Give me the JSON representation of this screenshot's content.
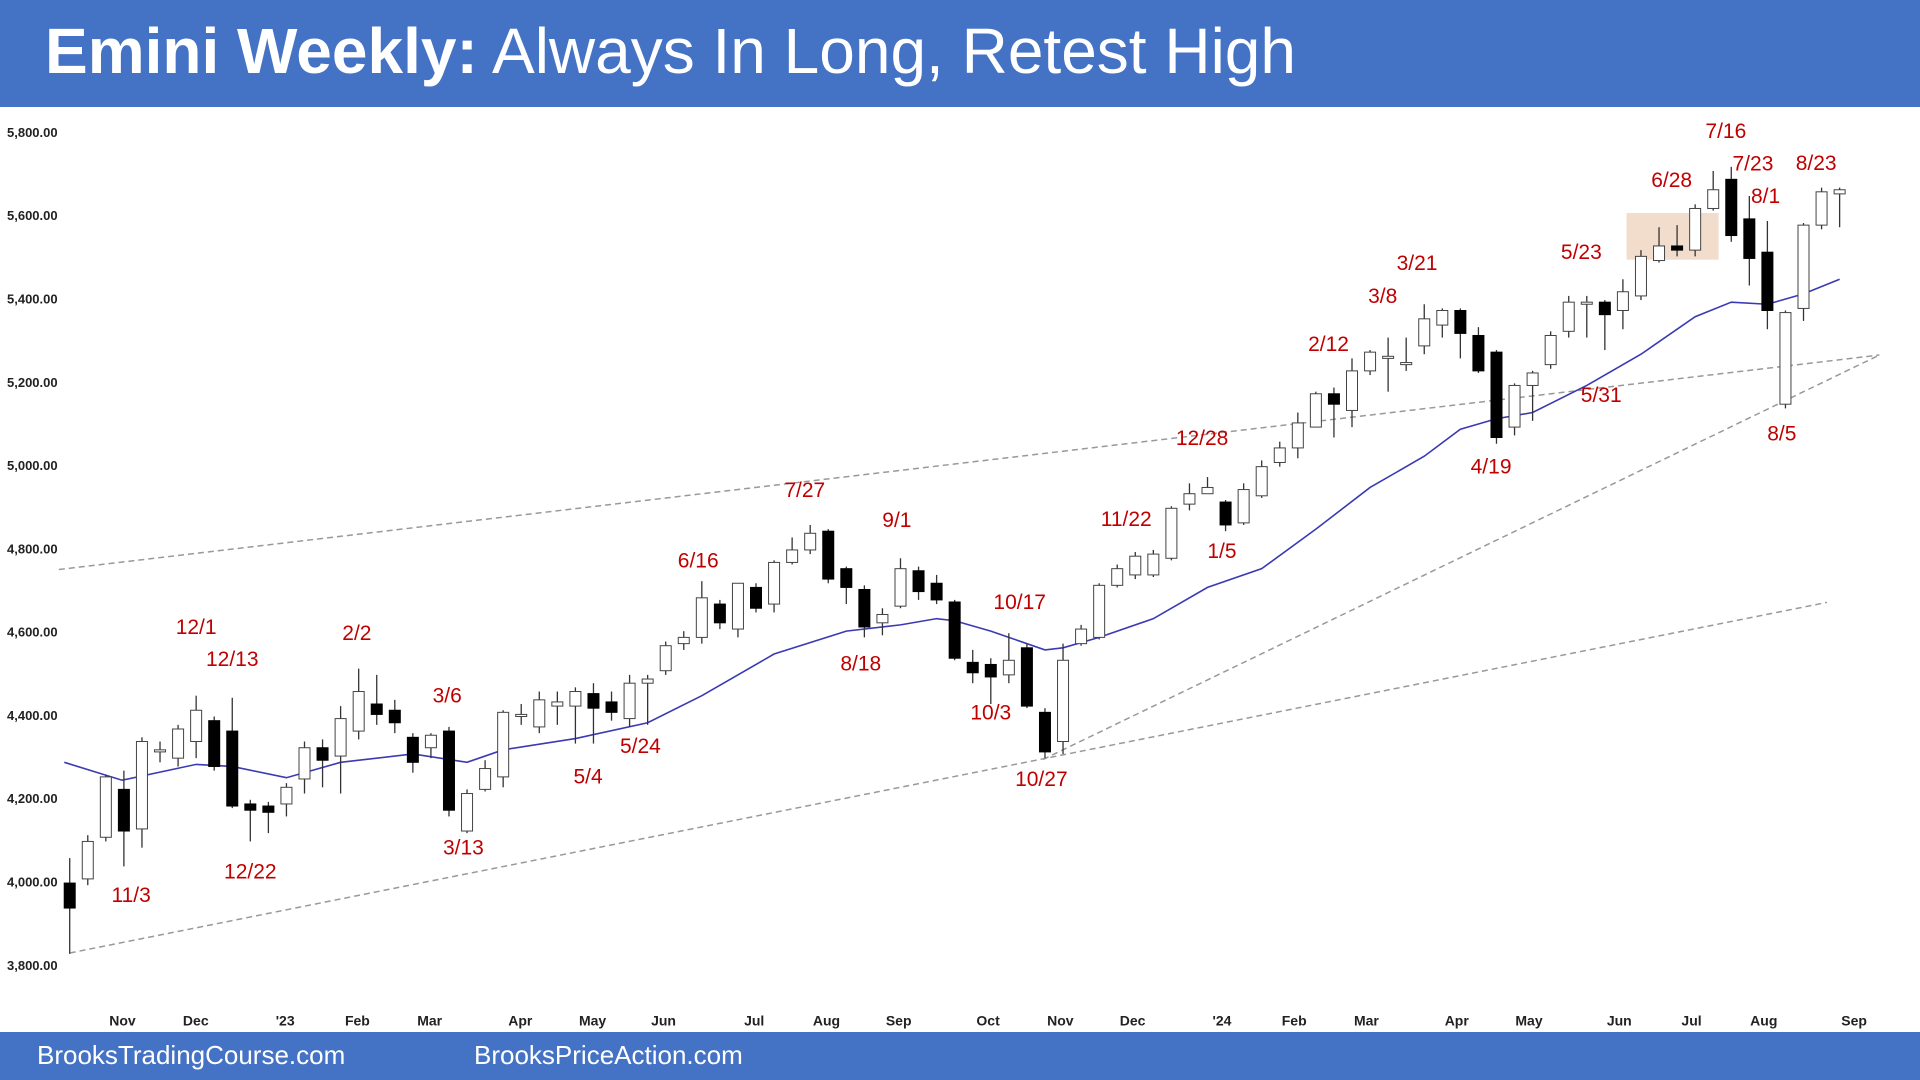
{
  "chart_data": {
    "type": "candlestick",
    "title": "Emini Weekly:",
    "subtitle": "Always In Long, Retest High",
    "open": [
      4000,
      4010,
      4110,
      4225,
      4130,
      4315,
      4300,
      4340,
      4390,
      4365,
      4190,
      4185,
      4190,
      4250,
      4325,
      4305,
      4365,
      4430,
      4415,
      4350,
      4325,
      4365,
      4125,
      4225,
      4255,
      4400,
      4375,
      4425,
      4425,
      4455,
      4435,
      4395,
      4480,
      4510,
      4575,
      4590,
      4670,
      4610,
      4710,
      4670,
      4770,
      4800,
      4845,
      4755,
      4705,
      4625,
      4665,
      4750,
      4720,
      4675,
      4530,
      4525,
      4500,
      4565,
      4410,
      4340,
      4575,
      4590,
      4715,
      4740,
      4740,
      4780,
      4910,
      4935,
      4915,
      4865,
      4930,
      5010,
      5045,
      5095,
      5175,
      5135,
      5230,
      5260,
      5245,
      5290,
      5340,
      5375,
      5315,
      5275,
      5095,
      5195,
      5245,
      5325,
      5390,
      5395,
      5375,
      5410,
      5495,
      5530,
      5520,
      5620,
      5690,
      5595,
      5515,
      5150,
      5380,
      5580,
      5655
    ],
    "high": [
      4060,
      4115,
      4260,
      4270,
      4350,
      4340,
      4380,
      4450,
      4400,
      4445,
      4200,
      4195,
      4240,
      4340,
      4345,
      4425,
      4515,
      4500,
      4440,
      4360,
      4360,
      4375,
      4225,
      4295,
      4415,
      4430,
      4460,
      4460,
      4470,
      4480,
      4460,
      4500,
      4500,
      4580,
      4605,
      4725,
      4680,
      4720,
      4720,
      4775,
      4830,
      4860,
      4850,
      4760,
      4715,
      4660,
      4780,
      4760,
      4740,
      4680,
      4560,
      4540,
      4600,
      4575,
      4420,
      4575,
      4620,
      4720,
      4765,
      4795,
      4800,
      4905,
      4960,
      4975,
      4920,
      4960,
      5015,
      5060,
      5130,
      5180,
      5190,
      5260,
      5280,
      5310,
      5310,
      5390,
      5380,
      5380,
      5335,
      5280,
      5200,
      5230,
      5325,
      5410,
      5410,
      5400,
      5450,
      5520,
      5575,
      5580,
      5630,
      5710,
      5720,
      5650,
      5590,
      5375,
      5585,
      5670,
      5670
    ],
    "low": [
      3830,
      3995,
      4100,
      4040,
      4085,
      4290,
      4280,
      4300,
      4270,
      4180,
      4100,
      4120,
      4160,
      4215,
      4230,
      4215,
      4345,
      4380,
      4360,
      4265,
      4300,
      4160,
      4120,
      4220,
      4230,
      4380,
      4360,
      4380,
      4335,
      4335,
      4390,
      4375,
      4380,
      4500,
      4560,
      4575,
      4610,
      4590,
      4650,
      4650,
      4765,
      4790,
      4720,
      4670,
      4590,
      4595,
      4660,
      4680,
      4670,
      4535,
      4480,
      4430,
      4480,
      4420,
      4300,
      4310,
      4570,
      4585,
      4710,
      4730,
      4735,
      4775,
      4895,
      4935,
      4845,
      4860,
      4925,
      5000,
      5020,
      5095,
      5070,
      5095,
      5220,
      5180,
      5230,
      5270,
      5310,
      5260,
      5225,
      5055,
      5075,
      5110,
      5235,
      5310,
      5310,
      5280,
      5330,
      5400,
      5490,
      5505,
      5505,
      5615,
      5540,
      5435,
      5330,
      5140,
      5350,
      5570,
      5575
    ],
    "close": [
      3940,
      4100,
      4255,
      4125,
      4340,
      4320,
      4370,
      4415,
      4280,
      4185,
      4175,
      4170,
      4230,
      4325,
      4295,
      4395,
      4460,
      4405,
      4385,
      4290,
      4355,
      4175,
      4215,
      4275,
      4410,
      4405,
      4440,
      4435,
      4460,
      4420,
      4410,
      4480,
      4490,
      4570,
      4590,
      4685,
      4625,
      4720,
      4660,
      4770,
      4800,
      4840,
      4730,
      4710,
      4615,
      4645,
      4755,
      4700,
      4680,
      4540,
      4505,
      4495,
      4535,
      4425,
      4315,
      4535,
      4610,
      4715,
      4755,
      4785,
      4790,
      4900,
      4935,
      4950,
      4860,
      4945,
      5000,
      5045,
      5105,
      5175,
      5150,
      5230,
      5275,
      5265,
      5250,
      5355,
      5375,
      5320,
      5230,
      5070,
      5195,
      5225,
      5315,
      5395,
      5395,
      5365,
      5420,
      5505,
      5530,
      5520,
      5620,
      5665,
      5555,
      5500,
      5375,
      5370,
      5580,
      5660,
      5665
    ],
    "ema": {
      "color": "#3a3ab4",
      "x": [
        -0.3,
        2.9,
        7,
        9,
        12,
        15,
        19,
        22,
        24,
        28,
        32,
        35,
        39,
        43,
        46,
        48,
        49,
        51,
        54,
        55,
        57,
        60,
        63,
        66,
        69,
        72,
        75,
        77,
        79,
        81,
        84,
        87,
        90,
        92,
        94,
        96,
        98
      ],
      "values": [
        4290,
        4247,
        4285,
        4280,
        4253,
        4290,
        4310,
        4290,
        4320,
        4347,
        4385,
        4450,
        4550,
        4605,
        4620,
        4635,
        4630,
        4605,
        4560,
        4565,
        4590,
        4635,
        4710,
        4755,
        4850,
        4950,
        5025,
        5090,
        5115,
        5130,
        5195,
        5270,
        5360,
        5395,
        5390,
        5415,
        5450
      ]
    },
    "trendlines": [
      {
        "x": [
          -0.6,
          100.2
        ],
        "y": [
          4753,
          5268
        ]
      },
      {
        "x": [
          0,
          97.3
        ],
        "y": [
          3832,
          4674
        ]
      },
      {
        "x": [
          53.9,
          100.2
        ],
        "y": [
          4297,
          5268
        ]
      }
    ],
    "highlight": {
      "x": [
        86.2,
        91.3
      ],
      "y": [
        5497,
        5609
      ],
      "color": "#f2dccc"
    },
    "annotations": [
      {
        "text": "11/3",
        "x": 3.4,
        "y": 3968
      },
      {
        "text": "12/1",
        "x": 7.0,
        "y": 4612
      },
      {
        "text": "12/13",
        "x": 9.0,
        "y": 4535
      },
      {
        "text": "12/22",
        "x": 10.0,
        "y": 4024
      },
      {
        "text": "2/2",
        "x": 15.9,
        "y": 4597
      },
      {
        "text": "3/6",
        "x": 20.9,
        "y": 4447
      },
      {
        "text": "3/13",
        "x": 21.8,
        "y": 4082
      },
      {
        "text": "5/4",
        "x": 28.7,
        "y": 4253
      },
      {
        "text": "5/24",
        "x": 31.6,
        "y": 4326
      },
      {
        "text": "6/16",
        "x": 34.8,
        "y": 4771
      },
      {
        "text": "7/27",
        "x": 40.7,
        "y": 4941
      },
      {
        "text": "8/18",
        "x": 43.8,
        "y": 4524
      },
      {
        "text": "9/1",
        "x": 45.8,
        "y": 4868
      },
      {
        "text": "10/3",
        "x": 51.0,
        "y": 4406
      },
      {
        "text": "10/17",
        "x": 52.6,
        "y": 4671
      },
      {
        "text": "10/27",
        "x": 53.8,
        "y": 4247
      },
      {
        "text": "11/22",
        "x": 58.5,
        "y": 4871
      },
      {
        "text": "12/28",
        "x": 62.7,
        "y": 5065
      },
      {
        "text": "1/5",
        "x": 63.8,
        "y": 4794
      },
      {
        "text": "2/12",
        "x": 69.7,
        "y": 5291
      },
      {
        "text": "3/8",
        "x": 72.7,
        "y": 5406
      },
      {
        "text": "3/21",
        "x": 74.6,
        "y": 5485
      },
      {
        "text": "4/19",
        "x": 78.7,
        "y": 4997
      },
      {
        "text": "5/23",
        "x": 83.7,
        "y": 5512
      },
      {
        "text": "5/31",
        "x": 84.8,
        "y": 5168
      },
      {
        "text": "6/28",
        "x": 88.7,
        "y": 5685
      },
      {
        "text": "7/16",
        "x": 91.7,
        "y": 5803
      },
      {
        "text": "7/23",
        "x": 93.2,
        "y": 5724
      },
      {
        "text": "8/1",
        "x": 93.9,
        "y": 5647
      },
      {
        "text": "8/5",
        "x": 94.8,
        "y": 5076
      },
      {
        "text": "8/23",
        "x": 96.7,
        "y": 5726
      }
    ],
    "xlim": [
      -3.86,
      102.45
    ],
    "xticks": [
      {
        "value": 2.92,
        "label": "Nov"
      },
      {
        "value": 6.98,
        "label": "Dec"
      },
      {
        "value": 11.93,
        "label": "'23"
      },
      {
        "value": 15.93,
        "label": "Feb"
      },
      {
        "value": 19.93,
        "label": "Mar"
      },
      {
        "value": 24.95,
        "label": "Apr"
      },
      {
        "value": 28.95,
        "label": "May"
      },
      {
        "value": 32.88,
        "label": "Jun"
      },
      {
        "value": 37.9,
        "label": "Jul"
      },
      {
        "value": 41.9,
        "label": "Aug"
      },
      {
        "value": 45.9,
        "label": "Sep"
      },
      {
        "value": 50.85,
        "label": "Oct"
      },
      {
        "value": 54.85,
        "label": "Nov"
      },
      {
        "value": 58.85,
        "label": "Dec"
      },
      {
        "value": 63.8,
        "label": "'24"
      },
      {
        "value": 67.8,
        "label": "Feb"
      },
      {
        "value": 71.8,
        "label": "Mar"
      },
      {
        "value": 76.8,
        "label": "Apr"
      },
      {
        "value": 80.8,
        "label": "May"
      },
      {
        "value": 85.8,
        "label": "Jun"
      },
      {
        "value": 89.8,
        "label": "Jul"
      },
      {
        "value": 93.8,
        "label": "Aug"
      },
      {
        "value": 98.8,
        "label": "Sep"
      }
    ],
    "ylim": [
      3700,
      5850
    ],
    "yticks": [
      {
        "value": 3800,
        "label": "3,800.00"
      },
      {
        "value": 4000,
        "label": "4,000.00"
      },
      {
        "value": 4200,
        "label": "4,200.00"
      },
      {
        "value": 4400,
        "label": "4,400.00"
      },
      {
        "value": 4600,
        "label": "4,600.00"
      },
      {
        "value": 4800,
        "label": "4,800.00"
      },
      {
        "value": 5000,
        "label": "5,000.00"
      },
      {
        "value": 5200,
        "label": "5,200.00"
      },
      {
        "value": 5400,
        "label": "5,400.00"
      },
      {
        "value": 5600,
        "label": "5,600.00"
      },
      {
        "value": 5800,
        "label": "5,800.00"
      }
    ],
    "grid": false
  },
  "footer": [
    "BrooksTradingCourse.com",
    "BrooksPriceAction.com"
  ]
}
